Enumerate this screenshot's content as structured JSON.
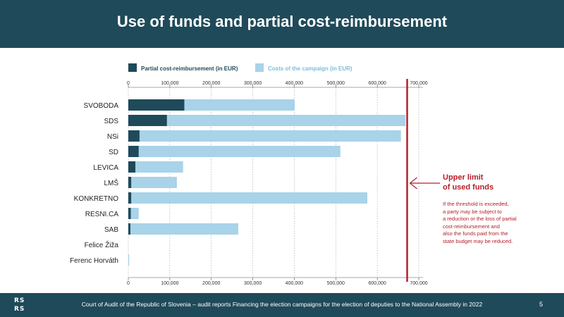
{
  "header": {
    "title": "Use of funds and partial cost-reimbursement"
  },
  "footer": {
    "logo_line1": "RS",
    "logo_line2": "RS",
    "text": "Court of Audit of the Republic of Slovenia – audit reports Financing the election campaigns for the election of deputies to the National Assembly in 2022",
    "page": "5"
  },
  "annotation": {
    "title_line1": "Upper limit",
    "title_line2": "of used funds",
    "note": "If the threshold is exceeded,\na party may be subject to\na reduction or the loss of partial\ncost-reimbursement and\nalso the funds paid from the\nstate budget may be reduced."
  },
  "colors": {
    "dark": "#1f4a5a",
    "light": "#a8d3e8",
    "limit": "#b3202a",
    "header_bg": "#1f4a5a"
  },
  "chart_data": {
    "type": "bar",
    "orientation": "horizontal",
    "stacked": false,
    "categories": [
      "SVOBODA",
      "SDS",
      "NSi",
      "SD",
      "LEVICA",
      "LMŠ",
      "KONKRETNO",
      "RESNI.CA",
      "SAB",
      "Felice Žiža",
      "Ferenc Horváth"
    ],
    "series": [
      {
        "name": "Partial cost-reimbursement (in EUR)",
        "color": "#1f4a5a",
        "values": [
          135000,
          93000,
          27000,
          25000,
          17000,
          7000,
          7000,
          6000,
          5000,
          0,
          0
        ]
      },
      {
        "name": "Costs of the campaign (in EUR)",
        "color": "#a8d3e8",
        "values": [
          401000,
          668000,
          657000,
          511000,
          132000,
          117000,
          576000,
          25000,
          265000,
          0,
          2000
        ]
      }
    ],
    "xlim": [
      0,
      700000
    ],
    "xticks": [
      0,
      100000,
      200000,
      300000,
      400000,
      500000,
      600000,
      700000
    ],
    "xtick_labels": [
      "0",
      "100,000",
      "200,000",
      "300,000",
      "400,000",
      "500,000",
      "600,000",
      "700,000"
    ],
    "upper_limit": 672000,
    "grid": true,
    "legend_position": "top"
  }
}
